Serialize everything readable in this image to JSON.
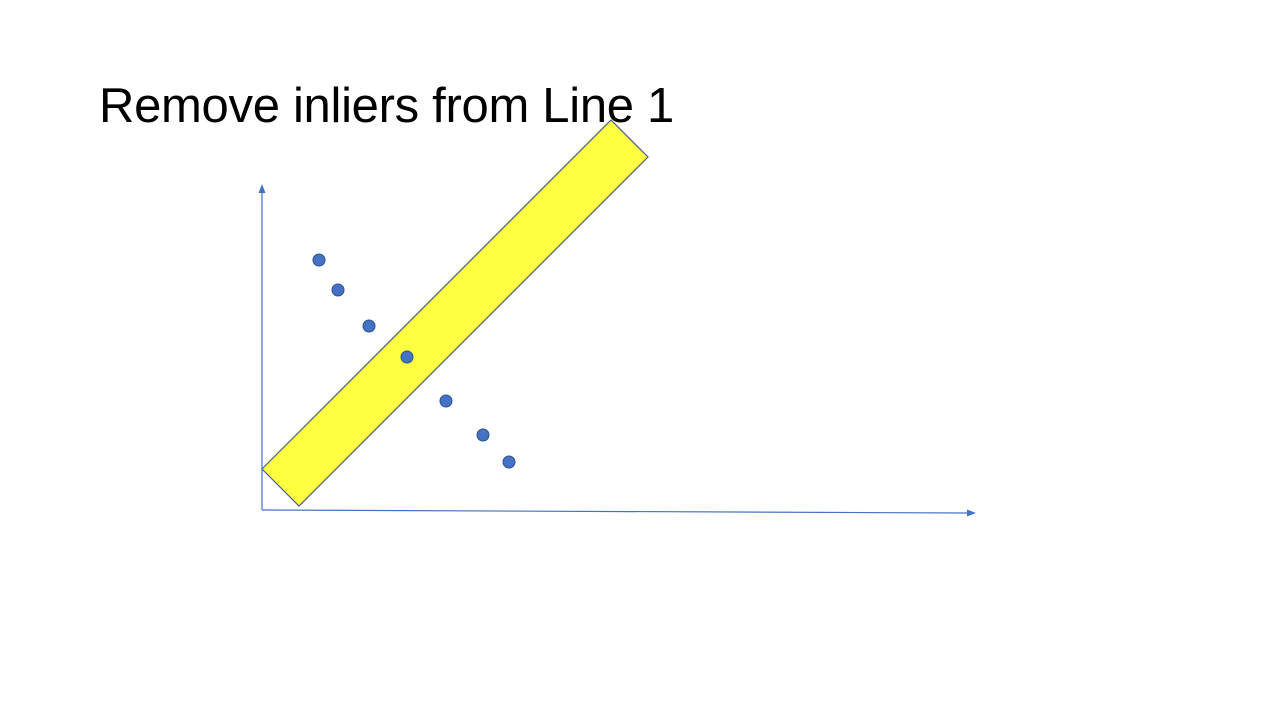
{
  "slide": {
    "title": "Remove inliers from Line 1"
  },
  "diagram": {
    "type": "scatter",
    "colors": {
      "axis": "#4472C4",
      "points": "#4472C4",
      "point_outline": "#2F528F",
      "inlier_band_fill": "#FFFF41",
      "inlier_band_stroke": "#4A5A8C"
    },
    "points": [
      {
        "x": 1,
        "y": 8
      },
      {
        "x": 2,
        "y": 7
      },
      {
        "x": 3,
        "y": 6
      },
      {
        "x": 4,
        "y": 5
      },
      {
        "x": 5,
        "y": 4
      },
      {
        "x": 6,
        "y": 3
      },
      {
        "x": 7,
        "y": 2
      }
    ]
  }
}
